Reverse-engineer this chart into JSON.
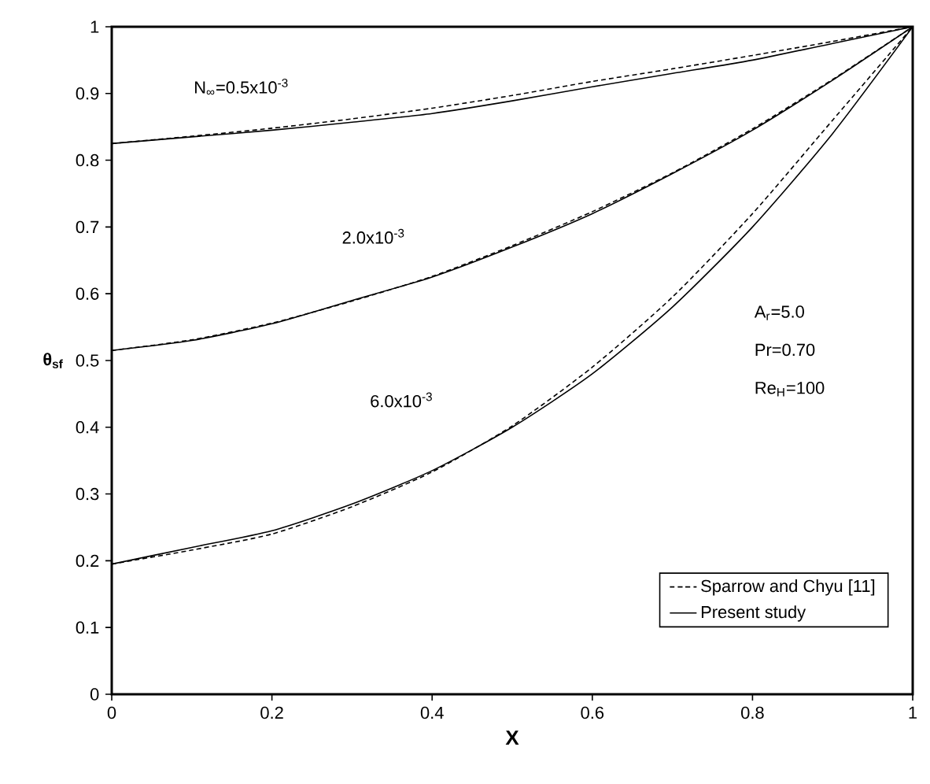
{
  "chart_data": {
    "type": "line",
    "xlabel": "X",
    "ylabel": "θ$_{sf}$",
    "xlim": [
      0,
      1
    ],
    "ylim": [
      0,
      1
    ],
    "xticks": [
      0,
      0.2,
      0.4,
      0.6,
      0.8,
      1
    ],
    "yticks": [
      0,
      0.1,
      0.2,
      0.3,
      0.4,
      0.5,
      0.6,
      0.7,
      0.8,
      0.9,
      1
    ],
    "grid": false,
    "legend": "bottom right",
    "marker": "none",
    "x": [
      0,
      0.1,
      0.2,
      0.3,
      0.4,
      0.5,
      0.6,
      0.7,
      0.8,
      0.9,
      1
    ],
    "series": [
      {
        "name": "Sparrow and Chyu [11]",
        "color": "#000000",
        "line_style": "dashed",
        "values": [
          0.825,
          0.836,
          0.848,
          0.862,
          0.878,
          0.897,
          0.918,
          0.937,
          0.957,
          0.978,
          1.0
        ]
      },
      {
        "color": "#000000",
        "line_style": "dashed",
        "values": [
          0.515,
          0.531,
          0.556,
          0.589,
          0.626,
          0.672,
          0.723,
          0.781,
          0.847,
          0.921,
          1.0
        ]
      },
      {
        "color": "#000000",
        "line_style": "dashed",
        "values": [
          0.195,
          0.216,
          0.24,
          0.281,
          0.333,
          0.402,
          0.49,
          0.595,
          0.72,
          0.86,
          1.0
        ]
      },
      {
        "name": "Present study",
        "color": "#000000",
        "line_style": "solid",
        "values": [
          0.825,
          0.835,
          0.845,
          0.857,
          0.87,
          0.889,
          0.91,
          0.93,
          0.95,
          0.975,
          1.0
        ]
      },
      {
        "color": "#000000",
        "line_style": "solid",
        "values": [
          0.515,
          0.53,
          0.555,
          0.59,
          0.625,
          0.67,
          0.72,
          0.78,
          0.845,
          0.92,
          1.0
        ]
      },
      {
        "color": "#000000",
        "line_style": "solid",
        "values": [
          0.195,
          0.22,
          0.245,
          0.285,
          0.335,
          0.4,
          0.48,
          0.58,
          0.7,
          0.84,
          1.0
        ]
      }
    ],
    "annotations": [
      "N$_{∞}$=0.5x10$^{-3}$",
      "2.0x10$^{-3}$",
      "6.0x10$^{-3}$",
      "A$_{r}$=5.0",
      "Pr=0.70",
      "Re$_{H}$=100"
    ]
  }
}
